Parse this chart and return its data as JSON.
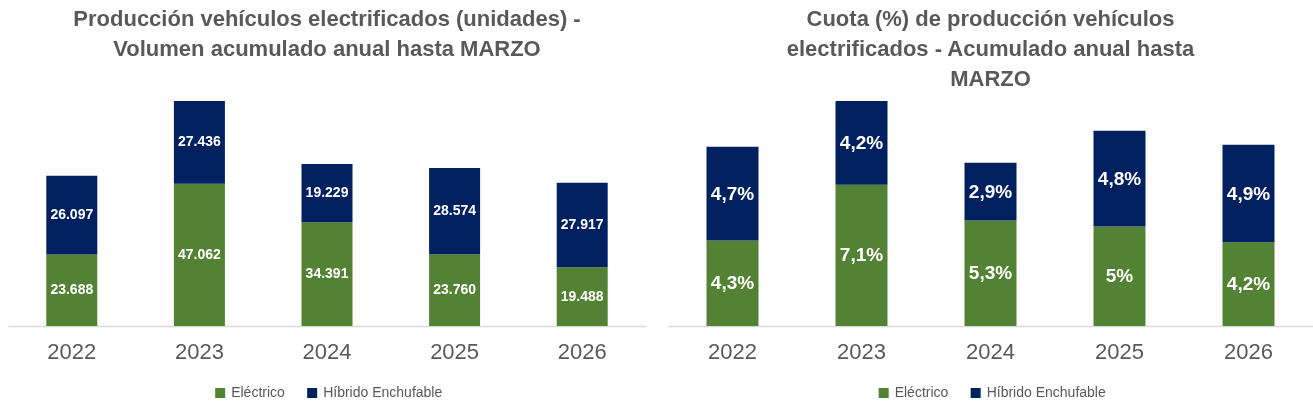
{
  "chart_data": [
    {
      "type": "bar",
      "stacked": true,
      "title": "Producción vehículos electrificados (unidades) -\nVolumen acumulado anual hasta MARZO",
      "categories": [
        "2022",
        "2023",
        "2024",
        "2025",
        "2026"
      ],
      "series": [
        {
          "name": "Eléctrico",
          "color": "#548235",
          "values": [
            23688,
            47062,
            34391,
            23760,
            19488
          ],
          "value_labels": [
            "23.688",
            "47.062",
            "34.391",
            "23.760",
            "19.488"
          ]
        },
        {
          "name": "Híbrido Enchufable",
          "color": "#002060",
          "values": [
            26097,
            27436,
            19229,
            28574,
            27917
          ],
          "value_labels": [
            "26.097",
            "27.436",
            "19.229",
            "28.574",
            "27.917"
          ]
        }
      ],
      "legend": "bottom",
      "grid": false,
      "tick_labels": "x"
    },
    {
      "type": "bar",
      "stacked": true,
      "title": "Cuota (%) de producción vehículos\nelectrificados - Acumulado anual hasta\nMARZO",
      "categories": [
        "2022",
        "2023",
        "2024",
        "2025",
        "2026"
      ],
      "series": [
        {
          "name": "Eléctrico",
          "color": "#548235",
          "values": [
            4.3,
            7.1,
            5.3,
            5,
            4.2
          ],
          "value_labels": [
            "4,3%",
            "7,1%",
            "5,3%",
            "5%",
            "4,2%"
          ]
        },
        {
          "name": "Híbrido Enchufable",
          "color": "#002060",
          "values": [
            4.7,
            4.2,
            2.9,
            4.8,
            4.9
          ],
          "value_labels": [
            "4,7%",
            "4,2%",
            "2,9%",
            "4,8%",
            "4,9%"
          ]
        }
      ],
      "legend": "bottom",
      "grid": false,
      "tick_labels": "x"
    }
  ]
}
